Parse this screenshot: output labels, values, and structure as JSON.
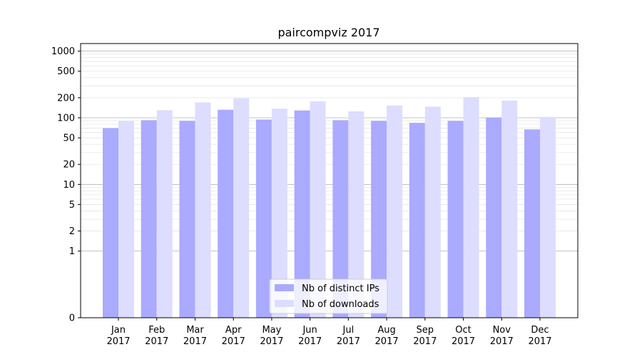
{
  "chart_data": {
    "type": "bar",
    "title": "paircompviz 2017",
    "xlabel": "",
    "ylabel": "",
    "yscale": "symlog",
    "ylim": [
      0,
      1300
    ],
    "yticks": [
      0,
      1,
      2,
      5,
      10,
      20,
      50,
      100,
      200,
      500,
      1000
    ],
    "yticklabels": [
      "0",
      "1",
      "2",
      "5",
      "10",
      "20",
      "50",
      "100",
      "200",
      "500",
      "1000"
    ],
    "grid": true,
    "legend_position": "bottom-center",
    "categories": [
      "Jan\n2017",
      "Feb\n2017",
      "Mar\n2017",
      "Apr\n2017",
      "May\n2017",
      "Jun\n2017",
      "Jul\n2017",
      "Aug\n2017",
      "Sep\n2017",
      "Oct\n2017",
      "Nov\n2017",
      "Dec\n2017"
    ],
    "series": [
      {
        "name": "Nb of distinct IPs",
        "color": "#aaaaff",
        "values": [
          70,
          92,
          90,
          132,
          94,
          129,
          92,
          90,
          84,
          90,
          101,
          67
        ]
      },
      {
        "name": "Nb of downloads",
        "color": "#ddddff",
        "values": [
          90,
          130,
          170,
          196,
          137,
          176,
          125,
          153,
          147,
          205,
          181,
          103
        ]
      }
    ]
  }
}
